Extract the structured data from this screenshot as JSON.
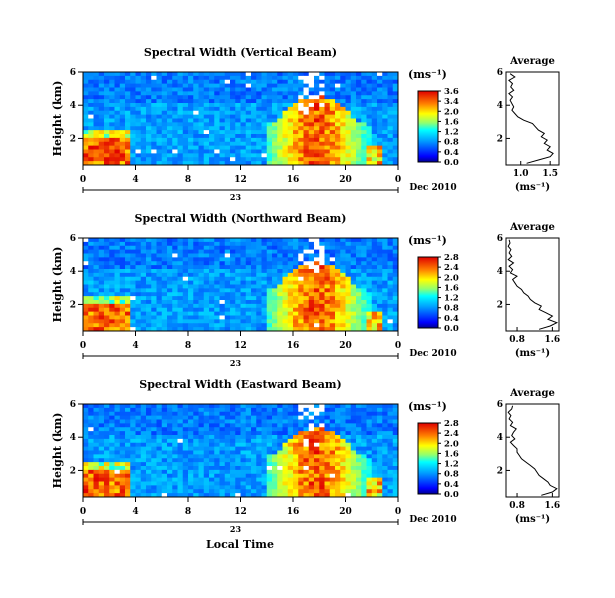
{
  "chart_data": [
    {
      "type": "heatmap",
      "title": "Spectral Width (Vertical Beam)",
      "ylabel": "Height (km)",
      "yticks": [
        "6",
        "4",
        "2"
      ],
      "xticks": [
        "0",
        "4",
        "8",
        "12",
        "16",
        "20",
        "0"
      ],
      "xlim": [
        0,
        24
      ],
      "ylim": [
        0.4,
        6
      ],
      "day_label": "23",
      "date_label": "Dec 2010",
      "colorbar": {
        "unit": "(ms⁻¹)",
        "ticks": [
          "3.6",
          "3.4",
          "2.0",
          "1.6",
          "1.2",
          "0.8",
          "0.4",
          "0.0"
        ]
      },
      "average": {
        "title": "Average",
        "xlabel": "(ms⁻¹)",
        "xticks": [
          "1.0",
          "1.5"
        ],
        "yticks": [
          "6",
          "4",
          "2"
        ],
        "xlim": [
          0.75,
          1.65
        ],
        "ylim": [
          0.4,
          6
        ],
        "height": [
          0.5,
          0.7,
          0.9,
          1.1,
          1.3,
          1.5,
          1.7,
          1.9,
          2.1,
          2.3,
          2.5,
          2.7,
          2.9,
          3.1,
          3.3,
          3.5,
          3.7,
          3.9,
          4.1,
          4.3,
          4.5,
          4.7,
          4.9,
          5.1,
          5.3,
          5.5,
          5.7,
          5.9
        ],
        "value": [
          1.1,
          1.3,
          1.5,
          1.55,
          1.45,
          1.5,
          1.4,
          1.45,
          1.35,
          1.4,
          1.3,
          1.25,
          1.2,
          1.05,
          0.95,
          0.9,
          0.85,
          0.88,
          0.85,
          0.82,
          0.86,
          0.8,
          0.88,
          0.83,
          0.86,
          0.8,
          0.9,
          0.82
        ]
      }
    },
    {
      "type": "heatmap",
      "title": "Spectral Width (Northward Beam)",
      "ylabel": "Height (km)",
      "yticks": [
        "6",
        "4",
        "2"
      ],
      "xticks": [
        "0",
        "4",
        "8",
        "12",
        "16",
        "20",
        "0"
      ],
      "xlim": [
        0,
        24
      ],
      "ylim": [
        0.4,
        6
      ],
      "day_label": "23",
      "date_label": "Dec 2010",
      "colorbar": {
        "unit": "(ms⁻¹)",
        "ticks": [
          "2.8",
          "2.4",
          "2.0",
          "1.6",
          "1.2",
          "0.8",
          "0.4",
          "0.0"
        ]
      },
      "average": {
        "title": "Average",
        "xlabel": "(ms⁻¹)",
        "xticks": [
          "0.8",
          "1.6"
        ],
        "yticks": [
          "6",
          "4",
          "2"
        ],
        "xlim": [
          0.55,
          1.75
        ],
        "ylim": [
          0.4,
          6
        ],
        "height": [
          0.5,
          0.7,
          0.9,
          1.1,
          1.3,
          1.5,
          1.7,
          1.9,
          2.1,
          2.3,
          2.5,
          2.7,
          2.9,
          3.1,
          3.3,
          3.5,
          3.7,
          3.9,
          4.1,
          4.3,
          4.5,
          4.7,
          4.9,
          5.1,
          5.3,
          5.5,
          5.7,
          5.9
        ],
        "value": [
          1.3,
          1.55,
          1.7,
          1.5,
          1.6,
          1.45,
          1.3,
          1.35,
          1.2,
          1.1,
          1.05,
          0.95,
          0.9,
          0.8,
          0.75,
          0.7,
          0.8,
          0.65,
          0.7,
          0.62,
          0.72,
          0.6,
          0.68,
          0.62,
          0.66,
          0.6,
          0.64,
          0.62
        ]
      }
    },
    {
      "type": "heatmap",
      "title": "Spectral Width (Eastward Beam)",
      "ylabel": "Height (km)",
      "yticks": [
        "6",
        "4",
        "2"
      ],
      "xticks": [
        "0",
        "4",
        "8",
        "12",
        "16",
        "20",
        "0"
      ],
      "xlim": [
        0,
        24
      ],
      "ylim": [
        0.4,
        6
      ],
      "day_label": "23",
      "date_label": "Dec 2010",
      "xlabel": "Local Time",
      "colorbar": {
        "unit": "(ms⁻¹)",
        "ticks": [
          "2.8",
          "2.4",
          "2.0",
          "1.6",
          "1.2",
          "0.8",
          "0.4",
          "0.0"
        ]
      },
      "average": {
        "title": "Average",
        "xlabel": "(ms⁻¹)",
        "xticks": [
          "0.8",
          "1.6"
        ],
        "yticks": [
          "6",
          "4",
          "2"
        ],
        "xlim": [
          0.55,
          1.75
        ],
        "ylim": [
          0.4,
          6
        ],
        "height": [
          0.5,
          0.7,
          0.9,
          1.1,
          1.3,
          1.5,
          1.7,
          1.9,
          2.1,
          2.3,
          2.5,
          2.7,
          2.9,
          3.1,
          3.3,
          3.5,
          3.7,
          3.9,
          4.1,
          4.3,
          4.5,
          4.7,
          4.9,
          5.1,
          5.3,
          5.5,
          5.7,
          5.9
        ],
        "value": [
          1.35,
          1.6,
          1.7,
          1.55,
          1.5,
          1.4,
          1.3,
          1.25,
          1.2,
          1.1,
          1.0,
          0.9,
          0.85,
          0.8,
          0.8,
          0.72,
          0.65,
          0.75,
          0.68,
          0.72,
          0.78,
          0.65,
          0.7,
          0.62,
          0.66,
          0.6,
          0.68,
          0.7
        ]
      }
    }
  ]
}
